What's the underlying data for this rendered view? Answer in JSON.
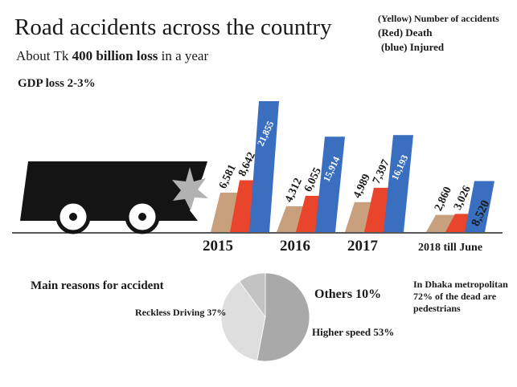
{
  "header": {
    "title": "Road accidents across the country",
    "subtitle_prefix": "About Tk ",
    "subtitle_bold": "400 billion loss",
    "subtitle_suffix": " in a year",
    "gdp_loss": "GDP loss 2-3%"
  },
  "legend": {
    "accidents": "(Yellow) Number of accidents",
    "death": "(Red) Death",
    "injured": "(blue) Injured"
  },
  "colors": {
    "accidents": "#c9a07e",
    "death": "#e8452c",
    "injured": "#3a6fc0",
    "truck": "#141414",
    "pie_large": "#a9a9a9",
    "pie_medium": "#dedede",
    "pie_small": "#c3c3c3"
  },
  "chart_data": [
    {
      "type": "bar",
      "categories": [
        "2015",
        "2016",
        "2017",
        "2018 till June"
      ],
      "series": [
        {
          "name": "Number of accidents",
          "values": [
            6581,
            4312,
            4989,
            2860
          ],
          "labels": [
            "6,581",
            "4,312",
            "4,989",
            "2,860"
          ]
        },
        {
          "name": "Death",
          "values": [
            8642,
            6055,
            7397,
            3026
          ],
          "labels": [
            "8,642",
            "6,055",
            "7,397",
            "3,026"
          ]
        },
        {
          "name": "Injured",
          "values": [
            21855,
            15914,
            16193,
            8520
          ],
          "labels": [
            "21,855",
            "15,914",
            "16,193",
            "8,520"
          ]
        }
      ]
    },
    {
      "type": "pie",
      "title": "Main reasons for accident",
      "slices": [
        {
          "label": "Higher speed 53%",
          "value": 53
        },
        {
          "label": "Reckless Driving 37%",
          "value": 37
        },
        {
          "label": "Others 10%",
          "value": 10
        }
      ]
    }
  ],
  "dhaka_note": "In Dhaka metropolitan 72% of the dead are pedestrians"
}
